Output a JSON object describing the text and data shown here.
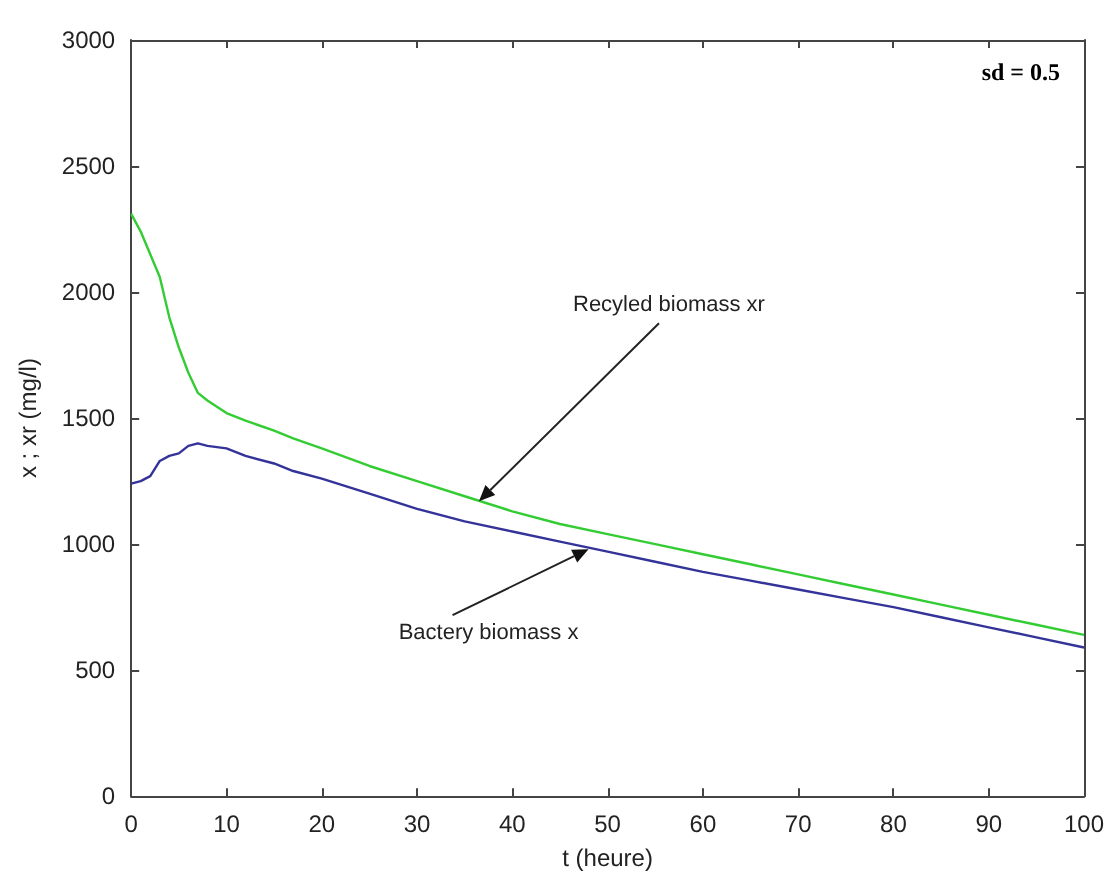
{
  "chart_data": {
    "type": "line",
    "xlabel": "t (heure)",
    "ylabel": "x ; xr (mg/l)",
    "xlim": [
      0,
      100
    ],
    "xticks": [
      0,
      10,
      20,
      30,
      40,
      50,
      60,
      70,
      80,
      90,
      100
    ],
    "ylim": [
      0,
      3000
    ],
    "yticks": [
      0,
      500,
      1000,
      1500,
      2000,
      2500,
      3000
    ],
    "grid": false,
    "marker": "none",
    "line_style": "solid",
    "annotations": [
      "sd = 0.5",
      {
        "text": "Recyled biomass xr",
        "x": 36.5,
        "y": 1170
      },
      {
        "text": "Bactery biomass x",
        "x": 48,
        "y": 980
      }
    ],
    "series": [
      {
        "color": "#33cc33",
        "x": [
          0,
          1,
          2,
          3,
          4,
          5,
          6,
          7,
          8,
          10,
          12,
          15,
          17,
          20,
          25,
          30,
          35,
          40,
          45,
          50,
          55,
          60,
          65,
          70,
          75,
          80,
          85,
          90,
          95,
          100
        ],
        "values": [
          2310,
          2240,
          2150,
          2060,
          1900,
          1780,
          1680,
          1600,
          1570,
          1520,
          1490,
          1450,
          1420,
          1380,
          1310,
          1250,
          1190,
          1130,
          1080,
          1040,
          1000,
          960,
          920,
          880,
          840,
          800,
          760,
          720,
          680,
          640
        ]
      },
      {
        "color": "#333399",
        "x": [
          0,
          1,
          2,
          3,
          4,
          5,
          6,
          7,
          8,
          10,
          12,
          15,
          17,
          20,
          25,
          30,
          35,
          40,
          45,
          50,
          55,
          60,
          65,
          70,
          75,
          80,
          85,
          90,
          95,
          100
        ],
        "values": [
          1240,
          1250,
          1270,
          1330,
          1350,
          1360,
          1390,
          1400,
          1390,
          1380,
          1350,
          1320,
          1290,
          1260,
          1200,
          1140,
          1090,
          1050,
          1010,
          970,
          930,
          890,
          855,
          820,
          785,
          750,
          710,
          670,
          630,
          590
        ]
      }
    ]
  }
}
